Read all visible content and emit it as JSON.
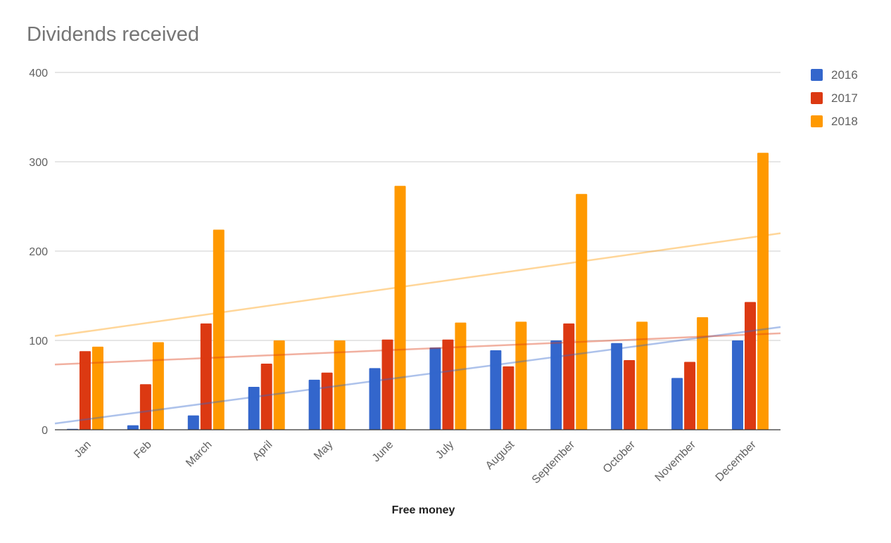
{
  "chart_data": {
    "type": "bar",
    "title": "Dividends received",
    "xlabel": "Free money",
    "ylabel": "",
    "ylim": [
      0,
      400
    ],
    "yticks": [
      0,
      100,
      200,
      300,
      400
    ],
    "grid": true,
    "legend_position": "right",
    "categories": [
      "Jan",
      "Feb",
      "March",
      "April",
      "May",
      "June",
      "July",
      "August",
      "September",
      "October",
      "November",
      "December"
    ],
    "series": [
      {
        "name": "2016",
        "color": "#3366cc",
        "values": [
          1,
          5,
          16,
          48,
          56,
          69,
          92,
          89,
          100,
          97,
          58,
          100
        ]
      },
      {
        "name": "2017",
        "color": "#dc3912",
        "values": [
          88,
          51,
          119,
          74,
          64,
          101,
          101,
          71,
          119,
          78,
          76,
          143
        ]
      },
      {
        "name": "2018",
        "color": "#ff9900",
        "values": [
          93,
          98,
          224,
          100,
          100,
          273,
          120,
          121,
          264,
          121,
          126,
          310
        ]
      }
    ],
    "trendlines": [
      {
        "series": "2016",
        "type": "linear",
        "start": 7,
        "end": 115
      },
      {
        "series": "2017",
        "type": "linear",
        "start": 73,
        "end": 108
      },
      {
        "series": "2018",
        "type": "linear",
        "start": 105,
        "end": 220
      }
    ]
  }
}
